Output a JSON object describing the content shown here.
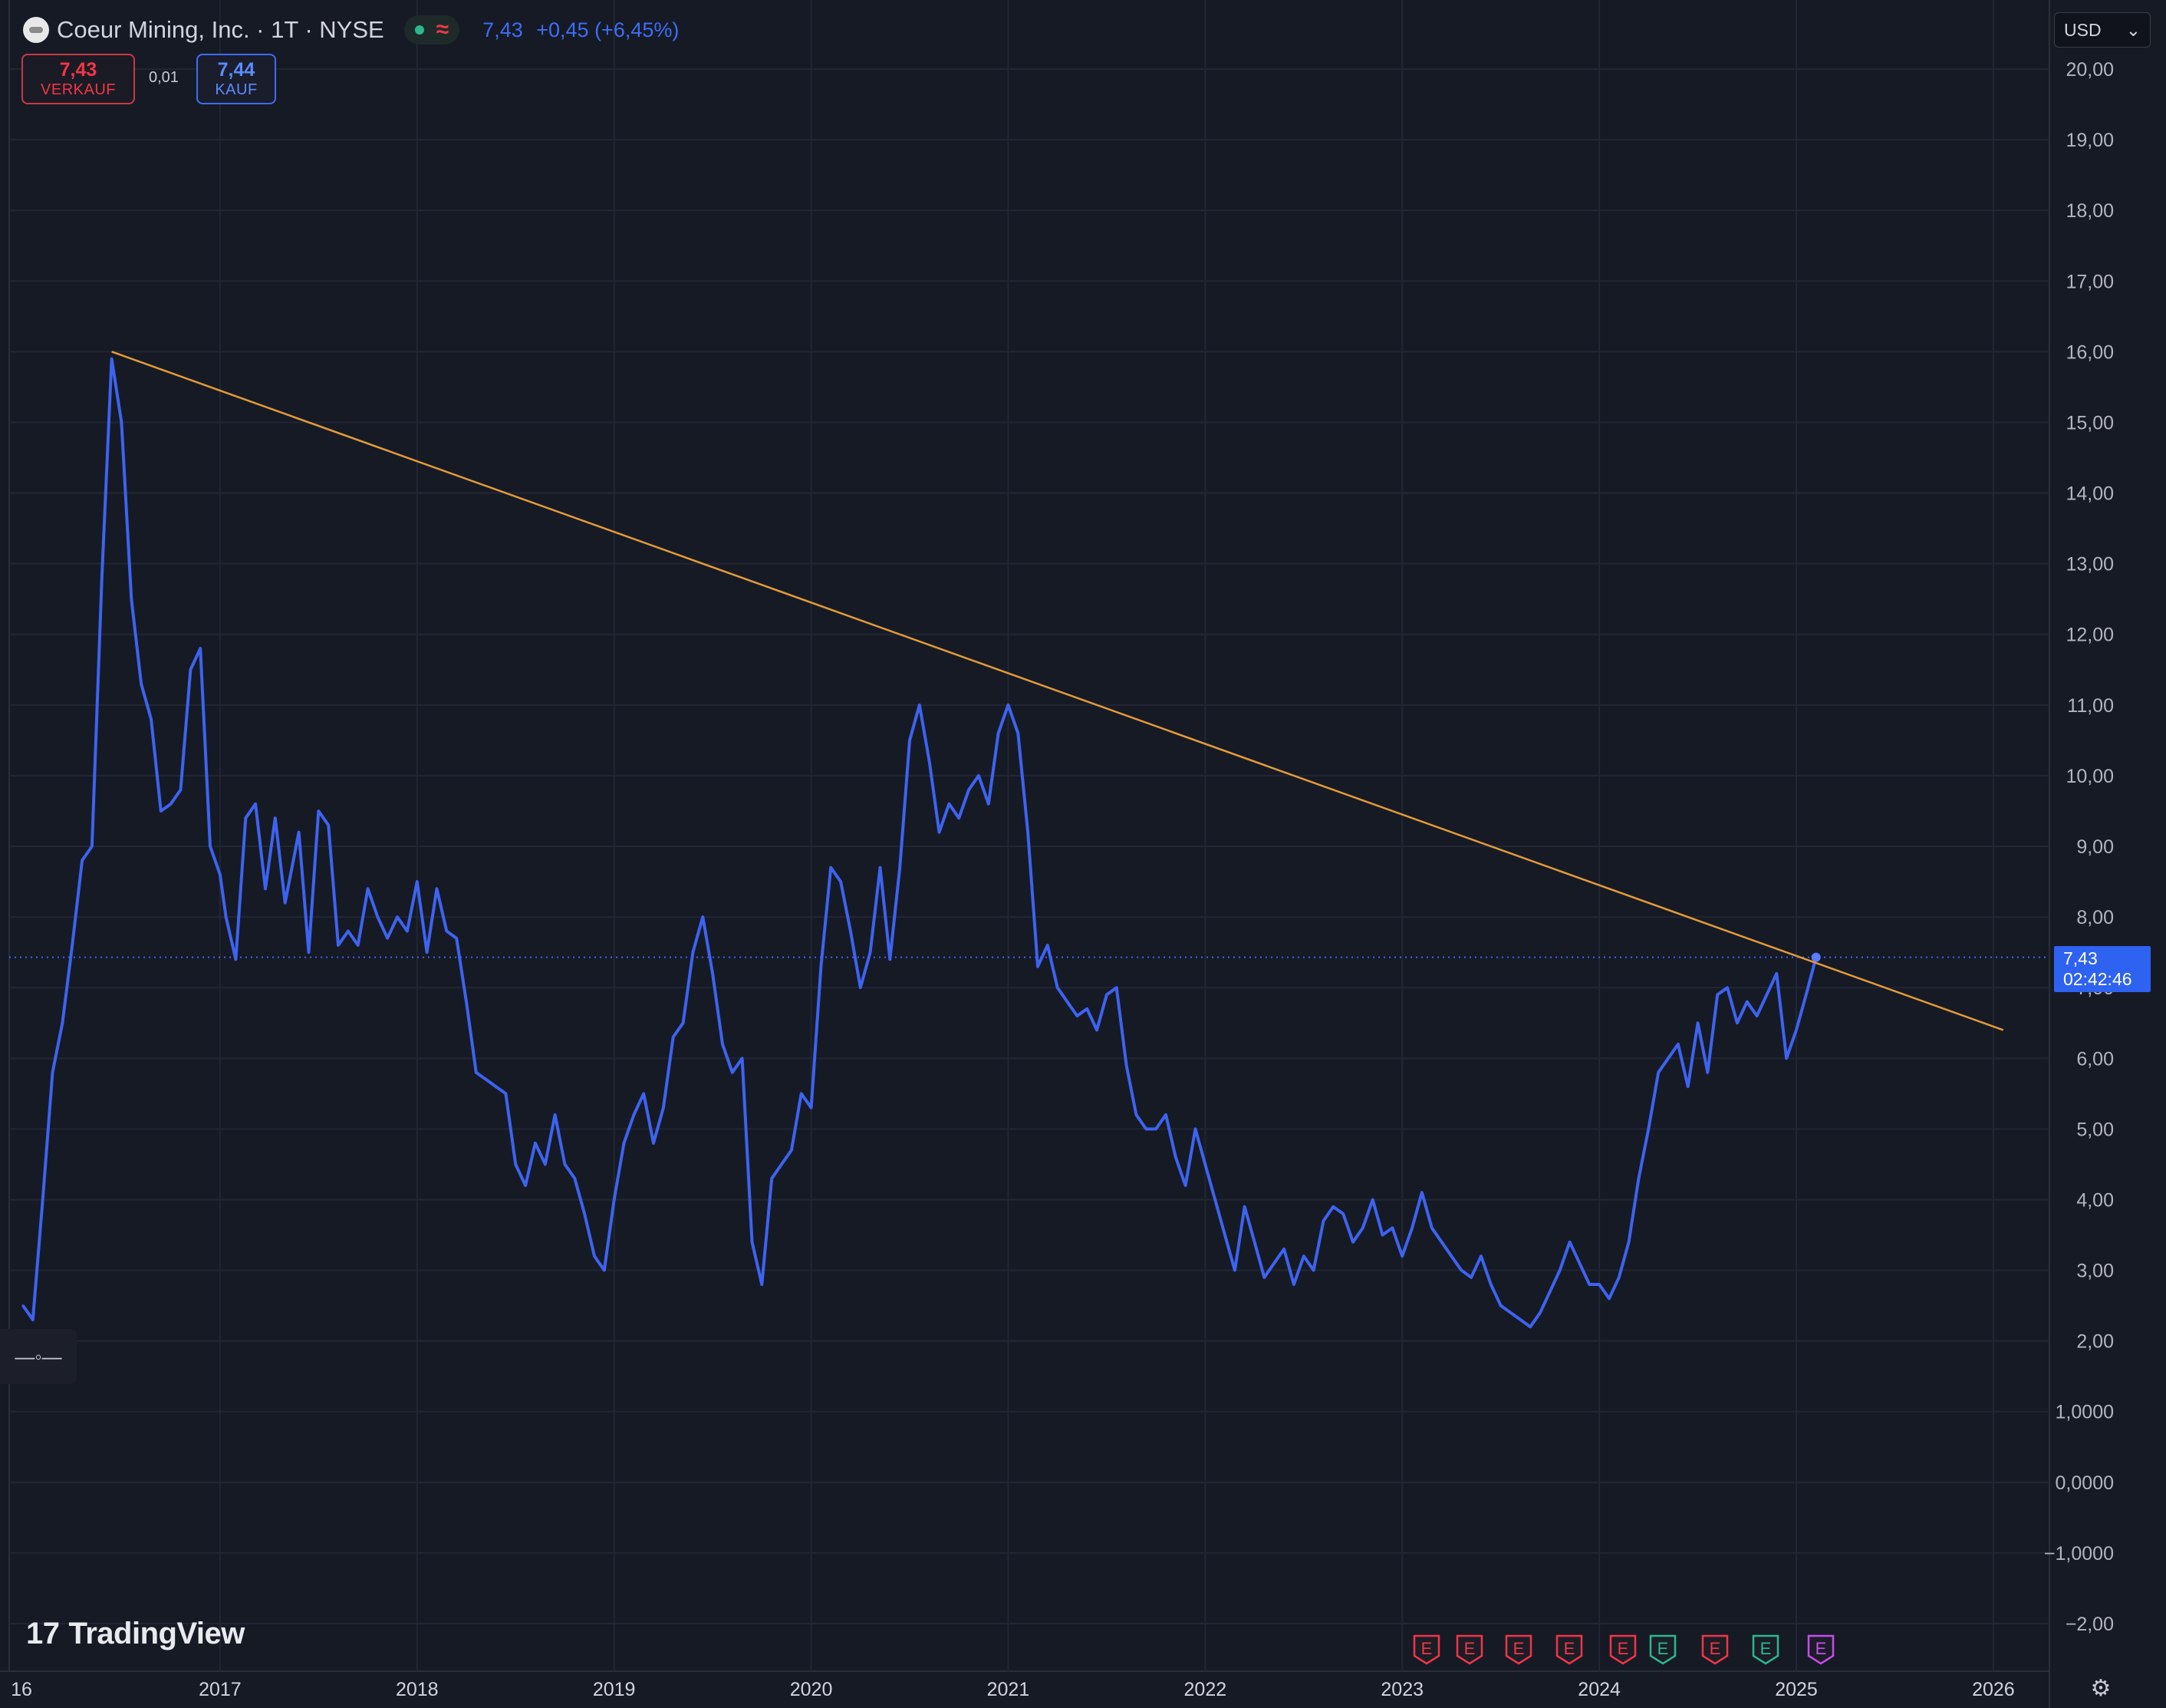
{
  "header": {
    "symbol_title": "Coeur Mining, Inc. · 1T · NYSE",
    "last_price": "7,43",
    "change": "+0,45 (+6,45%)"
  },
  "trade": {
    "sell_price": "7,43",
    "sell_label": "VERKAUF",
    "spread": "0,01",
    "buy_price": "7,44",
    "buy_label": "KAUF"
  },
  "currency": "USD",
  "price_tag": {
    "price": "7,43",
    "countdown": "02:42:46"
  },
  "branding": "TradingView",
  "earnings_markers": [
    {
      "label": "E",
      "color": "#f23645"
    },
    {
      "label": "E",
      "color": "#f23645"
    },
    {
      "label": "E",
      "color": "#f23645"
    },
    {
      "label": "E",
      "color": "#f23645"
    },
    {
      "label": "E",
      "color": "#f23645"
    },
    {
      "label": "E",
      "color": "#2bb88f"
    },
    {
      "label": "E",
      "color": "#f23645"
    },
    {
      "label": "E",
      "color": "#2bb88f"
    },
    {
      "label": "E",
      "color": "#c94bf0"
    }
  ],
  "colors": {
    "background": "#161a25",
    "line": "#3d63f0",
    "trendline": "#e39b3a",
    "grid": "#222634"
  },
  "chart_data": {
    "type": "line",
    "yticks": [
      "20,00",
      "19,00",
      "18,00",
      "17,00",
      "16,00",
      "15,00",
      "14,00",
      "13,00",
      "12,00",
      "11,00",
      "10,00",
      "9,00",
      "8,00",
      "7,00",
      "6,00",
      "5,00",
      "4,00",
      "3,00",
      "2,00",
      "1,0000",
      "0,0000",
      "−1,0000",
      "−2,00"
    ],
    "ylim": [
      -2,
      20
    ],
    "xticks": [
      "16",
      "2017",
      "2018",
      "2019",
      "2020",
      "2021",
      "2022",
      "2023",
      "2024",
      "2025",
      "2026"
    ],
    "xlim": [
      2015.95,
      2026.3
    ],
    "grid": true,
    "series": [
      {
        "x": [
          2016.0,
          2016.05,
          2016.1,
          2016.15,
          2016.2,
          2016.25,
          2016.3,
          2016.35,
          2016.4,
          2016.45,
          2016.5,
          2016.55,
          2016.6,
          2016.65,
          2016.7,
          2016.75,
          2016.8,
          2016.85,
          2016.9,
          2016.95,
          2017.0,
          2017.03,
          2017.08,
          2017.13,
          2017.18,
          2017.23,
          2017.28,
          2017.33,
          2017.4,
          2017.45,
          2017.5,
          2017.55,
          2017.6,
          2017.65,
          2017.7,
          2017.75,
          2017.8,
          2017.85,
          2017.9,
          2017.95,
          2018.0,
          2018.05,
          2018.1,
          2018.15,
          2018.2,
          2018.25,
          2018.3,
          2018.35,
          2018.4,
          2018.45,
          2018.5,
          2018.55,
          2018.6,
          2018.65,
          2018.7,
          2018.75,
          2018.8,
          2018.85,
          2018.9,
          2018.95,
          2019.0,
          2019.05,
          2019.1,
          2019.15,
          2019.2,
          2019.25,
          2019.3,
          2019.35,
          2019.4,
          2019.45,
          2019.5,
          2019.55,
          2019.6,
          2019.65,
          2019.7,
          2019.75,
          2019.8,
          2019.85,
          2019.9,
          2019.95,
          2020.0,
          2020.05,
          2020.1,
          2020.15,
          2020.2,
          2020.25,
          2020.3,
          2020.35,
          2020.4,
          2020.45,
          2020.5,
          2020.55,
          2020.6,
          2020.65,
          2020.7,
          2020.75,
          2020.8,
          2020.85,
          2020.9,
          2020.95,
          2021.0,
          2021.05,
          2021.1,
          2021.15,
          2021.2,
          2021.25,
          2021.3,
          2021.35,
          2021.4,
          2021.45,
          2021.5,
          2021.55,
          2021.6,
          2021.65,
          2021.7,
          2021.75,
          2021.8,
          2021.85,
          2021.9,
          2021.95,
          2022.0,
          2022.05,
          2022.1,
          2022.15,
          2022.2,
          2022.25,
          2022.3,
          2022.35,
          2022.4,
          2022.45,
          2022.5,
          2022.55,
          2022.6,
          2022.65,
          2022.7,
          2022.75,
          2022.8,
          2022.85,
          2022.9,
          2022.95,
          2023.0,
          2023.05,
          2023.1,
          2023.15,
          2023.2,
          2023.25,
          2023.3,
          2023.35,
          2023.4,
          2023.45,
          2023.5,
          2023.55,
          2023.6,
          2023.65,
          2023.7,
          2023.75,
          2023.8,
          2023.85,
          2023.9,
          2023.95,
          2024.0,
          2024.05,
          2024.1,
          2024.15,
          2024.2,
          2024.25,
          2024.3,
          2024.35,
          2024.4,
          2024.45,
          2024.5,
          2024.55,
          2024.6,
          2024.65,
          2024.7,
          2024.75,
          2024.8,
          2024.85,
          2024.9,
          2024.95,
          2025.0,
          2025.05,
          2025.1
        ],
        "y": [
          2.5,
          2.3,
          4.0,
          5.8,
          6.5,
          7.6,
          8.8,
          9.0,
          12.8,
          15.9,
          15.0,
          12.5,
          11.3,
          10.8,
          9.5,
          9.6,
          9.8,
          11.5,
          11.8,
          9.0,
          8.6,
          8.0,
          7.4,
          9.4,
          9.6,
          8.4,
          9.4,
          8.2,
          9.2,
          7.5,
          9.5,
          9.3,
          7.6,
          7.8,
          7.6,
          8.4,
          8.0,
          7.7,
          8.0,
          7.8,
          8.5,
          7.5,
          8.4,
          7.8,
          7.7,
          6.8,
          5.8,
          5.7,
          5.6,
          5.5,
          4.5,
          4.2,
          4.8,
          4.5,
          5.2,
          4.5,
          4.3,
          3.8,
          3.2,
          3.0,
          4.0,
          4.8,
          5.2,
          5.5,
          4.8,
          5.3,
          6.3,
          6.5,
          7.5,
          8.0,
          7.2,
          6.2,
          5.8,
          6.0,
          3.4,
          2.8,
          4.3,
          4.5,
          4.7,
          5.5,
          5.3,
          7.3,
          8.7,
          8.5,
          7.8,
          7.0,
          7.5,
          8.7,
          7.4,
          8.7,
          10.5,
          11.0,
          10.2,
          9.2,
          9.6,
          9.4,
          9.8,
          10.0,
          9.6,
          10.6,
          11.0,
          10.6,
          9.2,
          7.3,
          7.6,
          7.0,
          6.8,
          6.6,
          6.7,
          6.4,
          6.9,
          7.0,
          5.9,
          5.2,
          5.0,
          5.0,
          5.2,
          4.6,
          4.2,
          5.0,
          4.5,
          4.0,
          3.5,
          3.0,
          3.9,
          3.4,
          2.9,
          3.1,
          3.3,
          2.8,
          3.2,
          3.0,
          3.7,
          3.9,
          3.8,
          3.4,
          3.6,
          4.0,
          3.5,
          3.6,
          3.2,
          3.6,
          4.1,
          3.6,
          3.4,
          3.2,
          3.0,
          2.9,
          3.2,
          2.8,
          2.5,
          2.4,
          2.3,
          2.2,
          2.4,
          2.7,
          3.0,
          3.4,
          3.1,
          2.8,
          2.8,
          2.6,
          2.9,
          3.4,
          4.3,
          5.0,
          5.8,
          6.0,
          6.2,
          5.6,
          6.5,
          5.8,
          6.9,
          7.0,
          6.5,
          6.8,
          6.6,
          6.9,
          7.2,
          6.0,
          6.4,
          6.9,
          7.43
        ]
      }
    ],
    "trendline": {
      "x": [
        2016.45,
        2026.05
      ],
      "y": [
        16.0,
        6.4
      ]
    },
    "last_value": 7.43
  }
}
